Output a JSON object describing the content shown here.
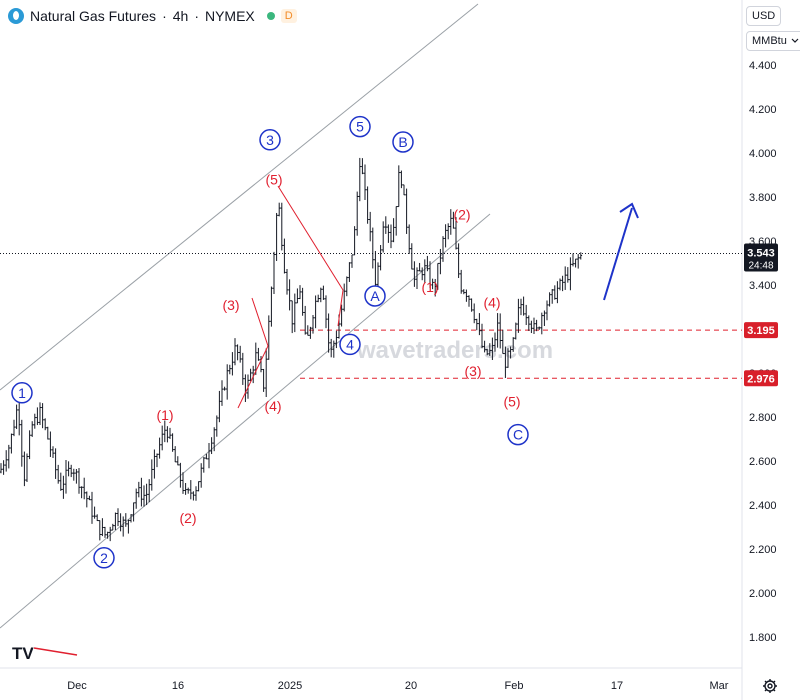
{
  "header": {
    "symbol": "Natural Gas Futures",
    "interval": "4h",
    "exchange": "NYMEX",
    "badge": "D",
    "separator": "·"
  },
  "scale_controls": {
    "currency": "USD",
    "unit": "MMBtu"
  },
  "watermark": "wavetraders.com",
  "colors": {
    "candles": "#131722",
    "wave_blue": "#1e33c9",
    "wave_red": "#e0202f",
    "channel": "#9aa0a6",
    "price_tag_bg": "#131722",
    "level_tag_bg": "#d81f2a"
  },
  "chart_data": {
    "type": "candlestick",
    "ylim": [
      1.7,
      4.5
    ],
    "yticks": [
      "4.400",
      "4.200",
      "4.000",
      "3.800",
      "3.600",
      "3.400",
      "3.200",
      "3.000",
      "2.800",
      "2.600",
      "2.400",
      "2.200",
      "2.000",
      "1.800"
    ],
    "xticks": [
      "Dec",
      "16",
      "2025",
      "20",
      "Feb",
      "17",
      "Mar"
    ],
    "last_price": "3.543",
    "countdown": "24:48",
    "levels": [
      {
        "value": 3.195,
        "label": "3.195"
      },
      {
        "value": 2.976,
        "label": "2.976"
      }
    ],
    "price_path": [
      [
        0,
        2.55
      ],
      [
        10,
        2.68
      ],
      [
        18,
        2.86
      ],
      [
        24,
        2.52
      ],
      [
        32,
        2.76
      ],
      [
        40,
        2.82
      ],
      [
        48,
        2.7
      ],
      [
        60,
        2.48
      ],
      [
        72,
        2.58
      ],
      [
        86,
        2.44
      ],
      [
        98,
        2.3
      ],
      [
        106,
        2.26
      ],
      [
        116,
        2.36
      ],
      [
        126,
        2.3
      ],
      [
        136,
        2.46
      ],
      [
        146,
        2.44
      ],
      [
        156,
        2.62
      ],
      [
        166,
        2.76
      ],
      [
        176,
        2.58
      ],
      [
        186,
        2.44
      ],
      [
        196,
        2.48
      ],
      [
        206,
        2.62
      ],
      [
        216,
        2.78
      ],
      [
        226,
        2.98
      ],
      [
        236,
        3.12
      ],
      [
        246,
        2.92
      ],
      [
        256,
        3.08
      ],
      [
        264,
        2.94
      ],
      [
        270,
        3.3
      ],
      [
        278,
        3.8
      ],
      [
        284,
        3.5
      ],
      [
        292,
        3.24
      ],
      [
        300,
        3.38
      ],
      [
        306,
        3.12
      ],
      [
        314,
        3.3
      ],
      [
        322,
        3.42
      ],
      [
        330,
        3.08
      ],
      [
        338,
        3.2
      ],
      [
        346,
        3.4
      ],
      [
        354,
        3.6
      ],
      [
        360,
        3.98
      ],
      [
        368,
        3.7
      ],
      [
        376,
        3.4
      ],
      [
        384,
        3.72
      ],
      [
        392,
        3.6
      ],
      [
        400,
        3.94
      ],
      [
        406,
        3.7
      ],
      [
        414,
        3.42
      ],
      [
        424,
        3.48
      ],
      [
        434,
        3.38
      ],
      [
        444,
        3.62
      ],
      [
        452,
        3.7
      ],
      [
        460,
        3.4
      ],
      [
        468,
        3.36
      ],
      [
        476,
        3.24
      ],
      [
        484,
        3.08
      ],
      [
        492,
        3.1
      ],
      [
        498,
        3.22
      ],
      [
        504,
        3.04
      ],
      [
        512,
        3.1
      ],
      [
        520,
        3.32
      ],
      [
        528,
        3.26
      ],
      [
        536,
        3.18
      ],
      [
        544,
        3.3
      ],
      [
        554,
        3.36
      ],
      [
        564,
        3.42
      ],
      [
        572,
        3.48
      ],
      [
        580,
        3.53
      ]
    ],
    "waves": [
      {
        "label": "1",
        "style": "circle",
        "x": 22,
        "y": 2.91
      },
      {
        "label": "2",
        "style": "circle",
        "x": 104,
        "y": 2.16
      },
      {
        "label": "3",
        "style": "circle",
        "x": 270,
        "y": 4.06
      },
      {
        "label": "4",
        "style": "circle",
        "x": 350,
        "y": 3.13
      },
      {
        "label": "5",
        "style": "circle",
        "x": 360,
        "y": 4.12
      },
      {
        "label": "A",
        "style": "circle",
        "x": 375,
        "y": 3.35
      },
      {
        "label": "B",
        "style": "circle",
        "x": 403,
        "y": 4.05
      },
      {
        "label": "C",
        "style": "circle",
        "x": 518,
        "y": 2.72
      },
      {
        "label": "(1)",
        "style": "paren",
        "x": 165,
        "y": 2.81
      },
      {
        "label": "(2)",
        "style": "paren",
        "x": 188,
        "y": 2.34
      },
      {
        "label": "(3)",
        "style": "paren",
        "x": 231,
        "y": 3.31
      },
      {
        "label": "(4)",
        "style": "paren",
        "x": 273,
        "y": 2.85
      },
      {
        "label": "(5)",
        "style": "paren",
        "x": 274,
        "y": 3.88
      },
      {
        "label": "(1)",
        "style": "paren",
        "x": 430,
        "y": 3.39
      },
      {
        "label": "(2)",
        "style": "paren",
        "x": 462,
        "y": 3.72
      },
      {
        "label": "(3)",
        "style": "paren",
        "x": 473,
        "y": 3.01
      },
      {
        "label": "(4)",
        "style": "paren",
        "x": 492,
        "y": 3.32
      },
      {
        "label": "(5)",
        "style": "paren",
        "x": 512,
        "y": 2.87
      }
    ]
  }
}
